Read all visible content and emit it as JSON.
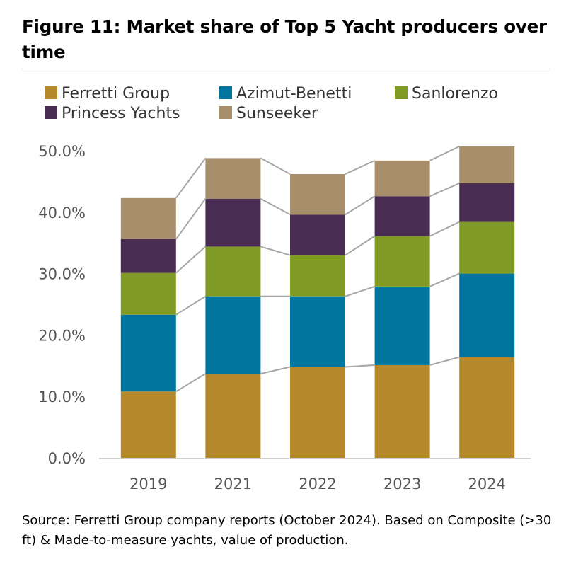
{
  "title": "Figure 11: Market share of Top 5 Yacht producers over time",
  "source": "Source: Ferretti Group company reports (October 2024). Based on Composite (>30 ft) & Made-to-measure yachts, value of production.",
  "chart_data": {
    "type": "bar",
    "stacked": true,
    "categories": [
      "2019",
      "2021",
      "2022",
      "2023",
      "2024"
    ],
    "series": [
      {
        "name": "Ferretti Group",
        "color": "#b5892b",
        "values": [
          10.8,
          13.7,
          14.8,
          15.1,
          16.4
        ]
      },
      {
        "name": "Azimut-Benetti",
        "color": "#00759e",
        "values": [
          12.5,
          12.6,
          11.5,
          12.8,
          13.6
        ]
      },
      {
        "name": "Sanlorenzo",
        "color": "#7f9a25",
        "values": [
          6.8,
          8.1,
          6.7,
          8.2,
          8.4
        ]
      },
      {
        "name": "Princess Yachts",
        "color": "#4a2d52",
        "values": [
          5.5,
          7.8,
          6.6,
          6.5,
          6.3
        ]
      },
      {
        "name": "Sunseeker",
        "color": "#a88f6c",
        "values": [
          6.7,
          6.6,
          6.6,
          5.8,
          6.0
        ]
      }
    ],
    "ylim": [
      0,
      50
    ],
    "yticks": [
      "0.0%",
      "10.0%",
      "20.0%",
      "30.0%",
      "40.0%",
      "50.0%"
    ],
    "ytick_values": [
      0,
      10,
      20,
      30,
      40,
      50
    ],
    "legend_position": "top",
    "grid": false,
    "connector_lines": true,
    "connector_color": "#a6a6a6"
  }
}
